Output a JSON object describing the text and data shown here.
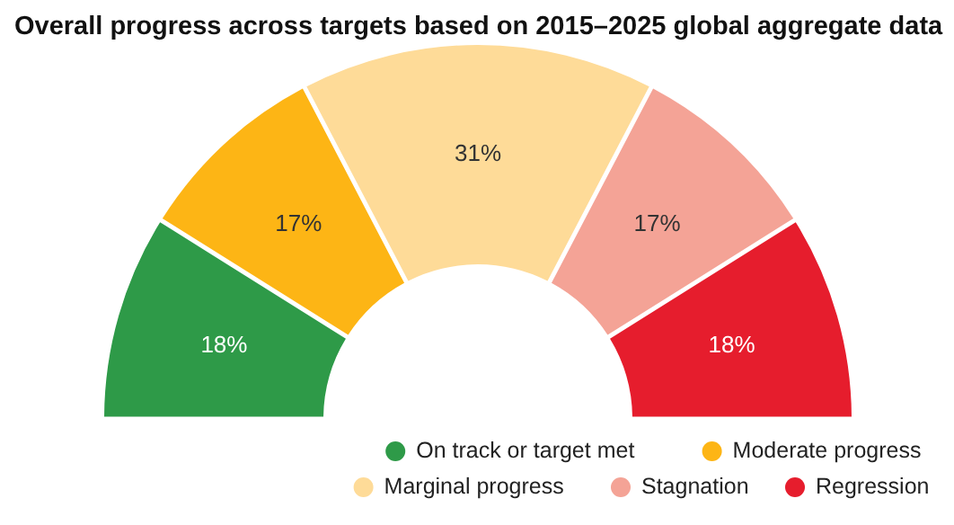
{
  "chart_data": {
    "type": "donut",
    "title": "Overall progress across targets based on 2015–2025 global aggregate data",
    "categories": [
      "On track or target met",
      "Moderate progress",
      "Marginal progress",
      "Stagnation",
      "Regression"
    ],
    "values": [
      18,
      17,
      31,
      17,
      18
    ],
    "value_labels": [
      "18%",
      "17%",
      "31%",
      "17%",
      "18%"
    ],
    "colors": [
      "#2e9a48",
      "#fdb515",
      "#fedb98",
      "#f4a396",
      "#e61d2d"
    ],
    "data_labels": true,
    "legend": "bottom right"
  }
}
